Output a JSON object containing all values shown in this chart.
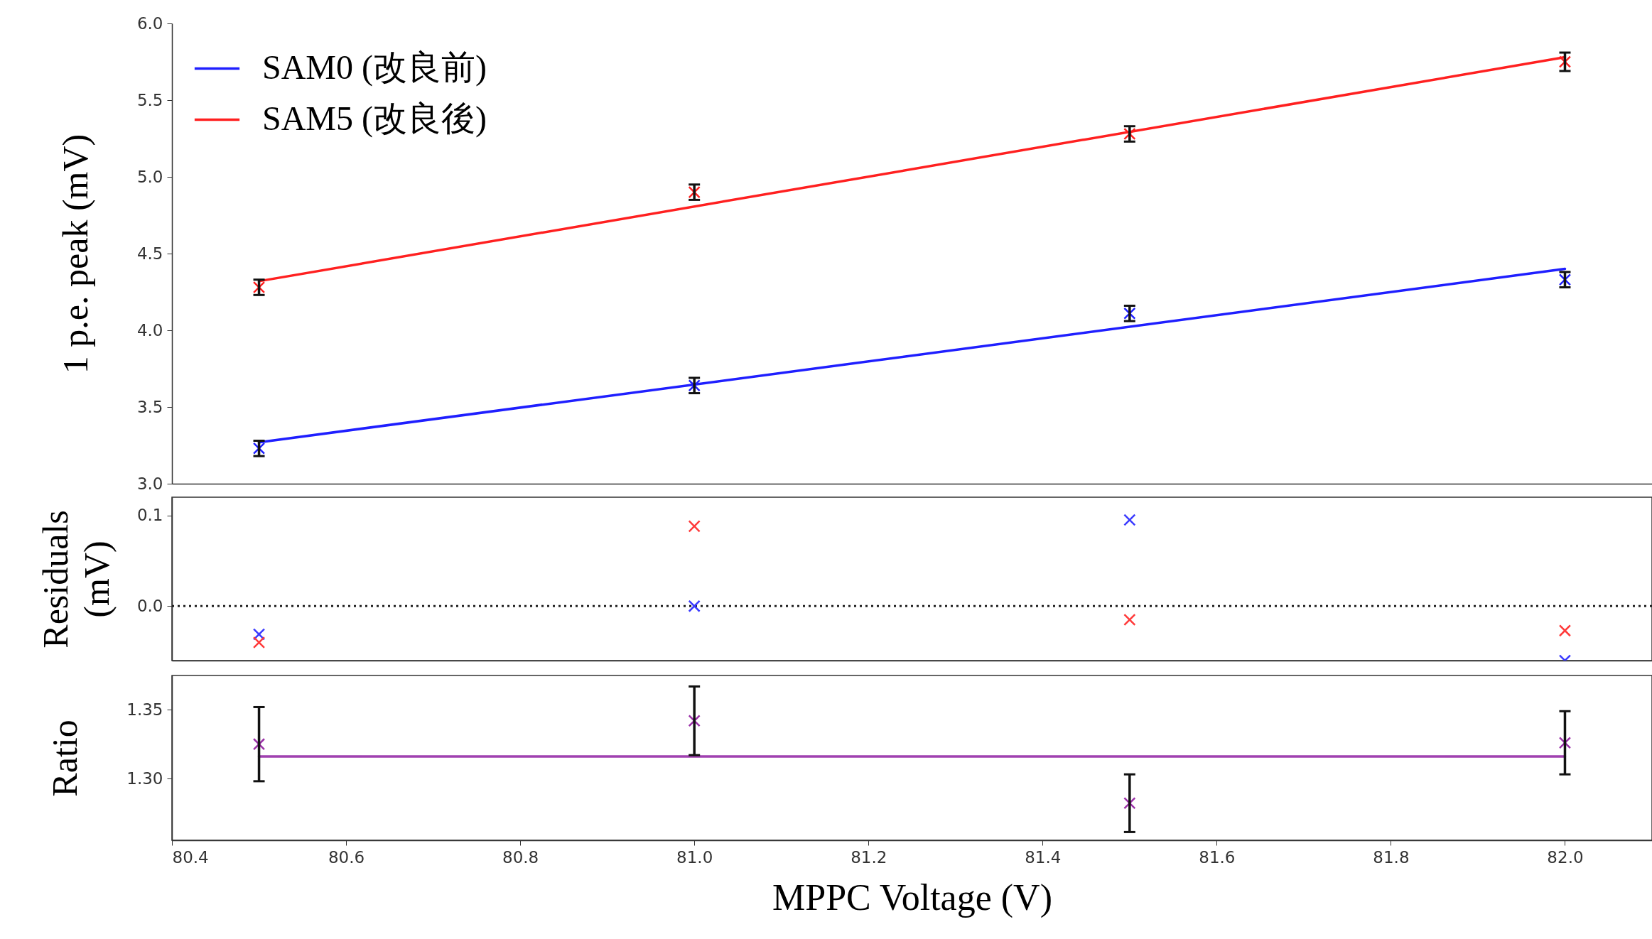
{
  "chart_data": [
    {
      "type": "scatter",
      "ylabel": "1 p.e. peak (mV)",
      "marker": "cross",
      "legend": "top left",
      "tick_labels": "y",
      "xlim": [
        80.4,
        82.1
      ],
      "ylim": [
        3.0,
        6.0
      ],
      "yticks": [
        {
          "value": 3,
          "label": "3.0"
        },
        3.5,
        {
          "value": 4,
          "label": "4.0"
        },
        4.5,
        {
          "value": 5,
          "label": "5.0"
        },
        5.5,
        {
          "value": 6,
          "label": "6.0"
        }
      ],
      "series": [
        {
          "type": "line",
          "name": "SAM0 (改良前)",
          "marker": "none",
          "color": "#1f1fff",
          "x": [
            80.5,
            82.0
          ],
          "values": [
            3.27,
            4.4
          ]
        },
        {
          "type": "line",
          "name": "SAM5 (改良後)",
          "marker": "none",
          "color": "#ff2020",
          "x": [
            80.5,
            82.0
          ],
          "values": [
            4.32,
            5.78
          ]
        },
        {
          "type": "scatter",
          "color": "#1f1fff",
          "x": [
            80.5,
            81.0,
            81.5,
            82.0
          ],
          "values": [
            3.23,
            3.64,
            4.11,
            4.33
          ],
          "errors": [
            0.05,
            0.05,
            0.05,
            0.05
          ]
        },
        {
          "type": "scatter",
          "color": "#ff2020",
          "x": [
            80.5,
            81.0,
            81.5,
            82.0
          ],
          "values": [
            4.28,
            4.9,
            5.28,
            5.75
          ],
          "errors": [
            0.05,
            0.05,
            0.05,
            0.06
          ]
        }
      ]
    },
    {
      "type": "scatter",
      "ylabel": "Residuals\n(mV)",
      "marker": "cross",
      "tick_labels": "y",
      "xlim": [
        80.4,
        82.1
      ],
      "ylim": [
        -0.06,
        0.12
      ],
      "yticks": [
        {
          "value": 0,
          "label": "0.0"
        },
        0.1
      ],
      "ref_lines": [
        {
          "axis": "y",
          "value": 0,
          "color": "#222222",
          "line_style": "dotted"
        }
      ],
      "series": [
        {
          "type": "scatter",
          "color": "#3a3aff",
          "x": [
            80.5,
            81.0,
            81.5,
            82.0
          ],
          "values": [
            -0.031,
            0.0,
            0.095,
            -0.06
          ]
        },
        {
          "type": "scatter",
          "color": "#ff3a3a",
          "x": [
            80.5,
            81.0,
            81.5,
            82.0
          ],
          "values": [
            -0.04,
            0.088,
            -0.015,
            -0.027
          ]
        }
      ]
    },
    {
      "type": "scatter",
      "ylabel": "Ratio",
      "xlabel": "MPPC Voltage (V)",
      "marker": "cross",
      "xlim": [
        80.4,
        82.1
      ],
      "ylim": [
        1.255,
        1.375
      ],
      "xticks": [
        80.4,
        80.6,
        80.8,
        {
          "value": 81,
          "label": "81.0"
        },
        81.2,
        81.4,
        81.6,
        81.8,
        {
          "value": 82,
          "label": "82.0"
        }
      ],
      "yticks": [
        {
          "value": 1.3,
          "label": "1.30"
        },
        1.35
      ],
      "series": [
        {
          "type": "line",
          "marker": "none",
          "color": "#a040b0",
          "x": [
            80.5,
            82.0
          ],
          "values": [
            1.316,
            1.316
          ]
        },
        {
          "type": "scatter",
          "color": "#9b30a8",
          "x": [
            80.5,
            81.0,
            81.5,
            82.0
          ],
          "values": [
            1.325,
            1.342,
            1.282,
            1.326
          ],
          "errors": [
            0.027,
            0.025,
            0.021,
            0.023
          ]
        }
      ]
    }
  ]
}
